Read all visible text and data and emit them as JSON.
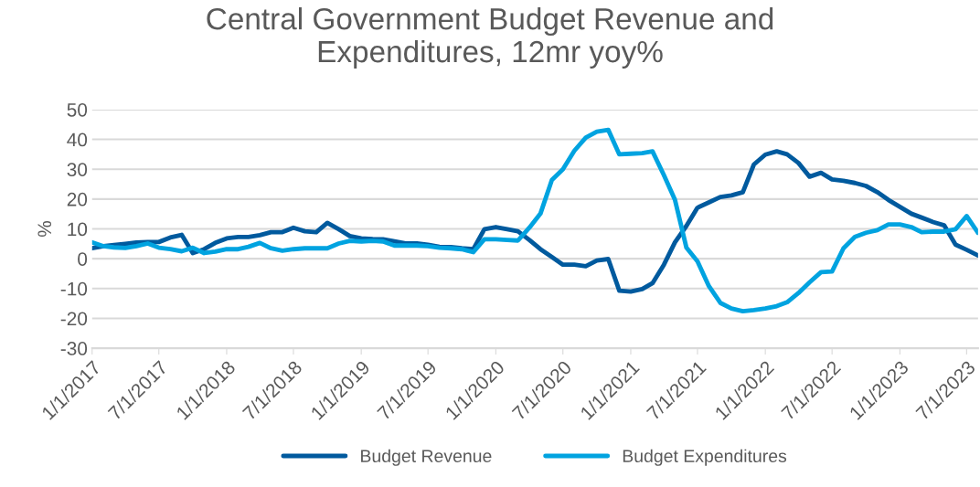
{
  "chart_data": {
    "type": "line",
    "title": "Central Government Budget Revenue and\nExpenditures, 12mr yoy%",
    "ylabel": "%",
    "x": [
      "2017-01",
      "2017-02",
      "2017-03",
      "2017-04",
      "2017-05",
      "2017-06",
      "2017-07",
      "2017-08",
      "2017-09",
      "2017-10",
      "2017-11",
      "2017-12",
      "2018-01",
      "2018-02",
      "2018-03",
      "2018-04",
      "2018-05",
      "2018-06",
      "2018-07",
      "2018-08",
      "2018-09",
      "2018-10",
      "2018-11",
      "2018-12",
      "2019-01",
      "2019-02",
      "2019-03",
      "2019-04",
      "2019-05",
      "2019-06",
      "2019-07",
      "2019-08",
      "2019-09",
      "2019-10",
      "2019-11",
      "2019-12",
      "2020-01",
      "2020-02",
      "2020-03",
      "2020-04",
      "2020-05",
      "2020-06",
      "2020-07",
      "2020-08",
      "2020-09",
      "2020-10",
      "2020-11",
      "2020-12",
      "2021-01",
      "2021-02",
      "2021-03",
      "2021-04",
      "2021-05",
      "2021-06",
      "2021-07",
      "2021-08",
      "2021-09",
      "2021-10",
      "2021-11",
      "2021-12",
      "2022-01",
      "2022-02",
      "2022-03",
      "2022-04",
      "2022-05",
      "2022-06",
      "2022-07",
      "2022-08",
      "2022-09",
      "2022-10",
      "2022-11",
      "2022-12",
      "2023-01",
      "2023-02",
      "2023-03",
      "2023-04",
      "2023-05",
      "2023-06",
      "2023-07",
      "2023-08"
    ],
    "series": [
      {
        "name": "Budget Revenue",
        "color": "#005a9e",
        "values": [
          3.5,
          4.2,
          4.6,
          5.0,
          5.4,
          5.6,
          5.6,
          7.1,
          8.0,
          1.9,
          3.2,
          5.3,
          6.8,
          7.3,
          7.3,
          7.9,
          8.9,
          8.9,
          10.4,
          9.2,
          8.9,
          12.0,
          9.9,
          7.6,
          6.8,
          6.6,
          6.5,
          5.8,
          5.1,
          5.1,
          4.7,
          4.0,
          3.9,
          3.5,
          3.2,
          9.9,
          10.6,
          9.9,
          9.2,
          6.3,
          3.2,
          0.6,
          -2.0,
          -2.0,
          -2.5,
          -0.6,
          -0.1,
          -10.7,
          -11.0,
          -10.2,
          -8.2,
          -2.0,
          5.5,
          11.0,
          17.1,
          18.9,
          20.7,
          21.2,
          22.3,
          31.6,
          34.9,
          36.0,
          35.0,
          32.1,
          27.5,
          28.8,
          26.6,
          26.1,
          25.4,
          24.4,
          22.3,
          19.7,
          17.4,
          15.1,
          13.8,
          12.3,
          11.2,
          4.7,
          3.0,
          1.1
        ]
      },
      {
        "name": "Budget Expenditures",
        "color": "#00a3e0",
        "values": [
          5.5,
          4.2,
          3.8,
          3.6,
          4.2,
          5.1,
          3.7,
          3.2,
          2.5,
          3.7,
          1.9,
          2.4,
          3.2,
          3.2,
          4.0,
          5.3,
          3.5,
          2.7,
          3.2,
          3.5,
          3.5,
          3.5,
          5.1,
          6.0,
          5.8,
          6.0,
          5.8,
          4.4,
          4.4,
          4.4,
          4.2,
          3.7,
          3.5,
          3.2,
          2.2,
          6.5,
          6.5,
          6.3,
          6.1,
          10.4,
          15.1,
          26.4,
          30.0,
          36.2,
          40.6,
          42.6,
          43.2,
          35.0,
          35.2,
          35.4,
          36.0,
          28.0,
          19.7,
          3.7,
          -0.9,
          -9.2,
          -14.8,
          -16.7,
          -17.6,
          -17.2,
          -16.7,
          -15.9,
          -14.6,
          -11.5,
          -7.9,
          -4.5,
          -4.3,
          3.5,
          7.3,
          8.7,
          9.6,
          11.5,
          11.5,
          10.6,
          8.9,
          9.1,
          9.1,
          9.9,
          14.3,
          8.7
        ]
      }
    ],
    "xlim": [
      "2017-01-01",
      "2023-08-01"
    ],
    "xticks": [
      {
        "value": "2017-01-01",
        "label": "1/1/2017"
      },
      {
        "value": "2017-07-01",
        "label": "7/1/2017"
      },
      {
        "value": "2018-01-01",
        "label": "1/1/2018"
      },
      {
        "value": "2018-07-01",
        "label": "7/1/2018"
      },
      {
        "value": "2019-01-01",
        "label": "1/1/2019"
      },
      {
        "value": "2019-07-01",
        "label": "7/1/2019"
      },
      {
        "value": "2020-01-01",
        "label": "1/1/2020"
      },
      {
        "value": "2020-07-01",
        "label": "7/1/2020"
      },
      {
        "value": "2021-01-01",
        "label": "1/1/2021"
      },
      {
        "value": "2021-07-01",
        "label": "7/1/2021"
      },
      {
        "value": "2022-01-01",
        "label": "1/1/2022"
      },
      {
        "value": "2022-07-01",
        "label": "7/1/2022"
      },
      {
        "value": "2023-01-01",
        "label": "1/1/2023"
      },
      {
        "value": "2023-07-01",
        "label": "7/1/2023"
      }
    ],
    "ylim": [
      -30,
      50
    ],
    "yticks": [
      -30,
      -20,
      -10,
      0,
      10,
      20,
      30,
      40,
      50
    ],
    "grid": "y",
    "legend": "bottom",
    "marker": "none",
    "line_style": "solid"
  }
}
